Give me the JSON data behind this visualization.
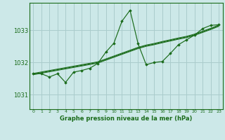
{
  "title": "Graphe pression niveau de la mer (hPa)",
  "background_color": "#cce8e8",
  "grid_color": "#aacccc",
  "line_color": "#1a6b1a",
  "text_color": "#1a6b1a",
  "xlim": [
    -0.5,
    23.5
  ],
  "ylim": [
    1030.55,
    1033.85
  ],
  "yticks": [
    1031,
    1032,
    1033
  ],
  "xticks": [
    0,
    1,
    2,
    3,
    4,
    5,
    6,
    7,
    8,
    9,
    10,
    11,
    12,
    13,
    14,
    15,
    16,
    17,
    18,
    19,
    20,
    21,
    22,
    23
  ],
  "hours": [
    0,
    1,
    2,
    3,
    4,
    5,
    6,
    7,
    8,
    9,
    10,
    11,
    12,
    13,
    14,
    15,
    16,
    17,
    18,
    19,
    20,
    21,
    22,
    23
  ],
  "series1": [
    1031.65,
    1031.65,
    1031.55,
    1031.65,
    1031.38,
    1031.7,
    1031.75,
    1031.82,
    1031.97,
    1032.32,
    1032.6,
    1033.28,
    1033.62,
    1032.58,
    1031.93,
    1032.0,
    1032.03,
    1032.28,
    1032.55,
    1032.7,
    1032.85,
    1033.05,
    1033.15,
    1033.17
  ],
  "trend1": [
    1031.64,
    1031.685,
    1031.73,
    1031.775,
    1031.82,
    1031.865,
    1031.91,
    1031.955,
    1032.0,
    1032.09,
    1032.18,
    1032.27,
    1032.36,
    1032.45,
    1032.52,
    1032.57,
    1032.63,
    1032.685,
    1032.74,
    1032.79,
    1032.86,
    1032.95,
    1033.04,
    1033.14
  ],
  "trend2": [
    1031.62,
    1031.665,
    1031.71,
    1031.755,
    1031.8,
    1031.845,
    1031.89,
    1031.935,
    1031.98,
    1032.07,
    1032.16,
    1032.25,
    1032.34,
    1032.43,
    1032.5,
    1032.55,
    1032.61,
    1032.665,
    1032.72,
    1032.77,
    1032.84,
    1032.93,
    1033.02,
    1033.12
  ],
  "trend3": [
    1031.66,
    1031.705,
    1031.75,
    1031.795,
    1031.84,
    1031.885,
    1031.93,
    1031.975,
    1032.02,
    1032.11,
    1032.2,
    1032.29,
    1032.38,
    1032.47,
    1032.54,
    1032.59,
    1032.65,
    1032.705,
    1032.76,
    1032.81,
    1032.88,
    1032.97,
    1033.06,
    1033.16
  ]
}
